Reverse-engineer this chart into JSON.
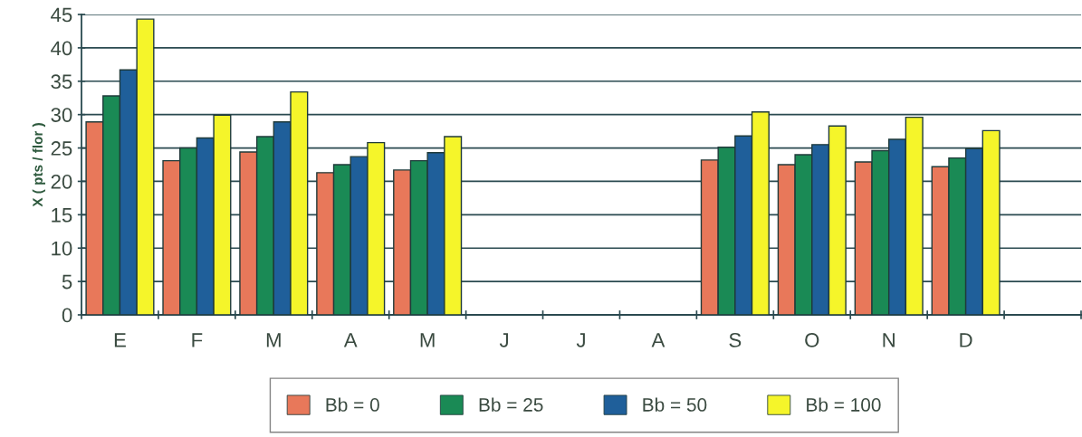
{
  "chart_data": {
    "type": "bar",
    "ylabel": "X ( pts / flor )",
    "categories": [
      "E",
      "F",
      "M",
      "A",
      "M",
      "J",
      "J",
      "A",
      "S",
      "O",
      "N",
      "D",
      null
    ],
    "series": [
      {
        "name": "Bb = 0",
        "color": "#e8785a",
        "values": [
          28.9,
          23.1,
          24.4,
          21.3,
          21.7,
          null,
          null,
          null,
          23.2,
          22.5,
          22.9,
          22.2,
          null
        ]
      },
      {
        "name": "Bb = 25",
        "color": "#1a8a55",
        "values": [
          32.8,
          25.0,
          26.7,
          22.5,
          23.1,
          null,
          null,
          null,
          25.1,
          24.0,
          24.6,
          23.5,
          null
        ]
      },
      {
        "name": "Bb = 50",
        "color": "#1f5f9a",
        "values": [
          36.7,
          26.5,
          28.9,
          23.7,
          24.3,
          null,
          null,
          null,
          26.8,
          25.5,
          26.3,
          24.9,
          null
        ]
      },
      {
        "name": "Bb = 100",
        "color": "#f5f52a",
        "values": [
          44.3,
          29.9,
          33.4,
          25.8,
          26.7,
          null,
          null,
          null,
          30.4,
          28.3,
          29.6,
          27.6,
          null
        ]
      }
    ],
    "ylim": [
      0,
      45
    ],
    "yticks": [
      0,
      5,
      10,
      15,
      20,
      25,
      30,
      35,
      40,
      45
    ],
    "grid": "y",
    "legend": "bottom"
  }
}
